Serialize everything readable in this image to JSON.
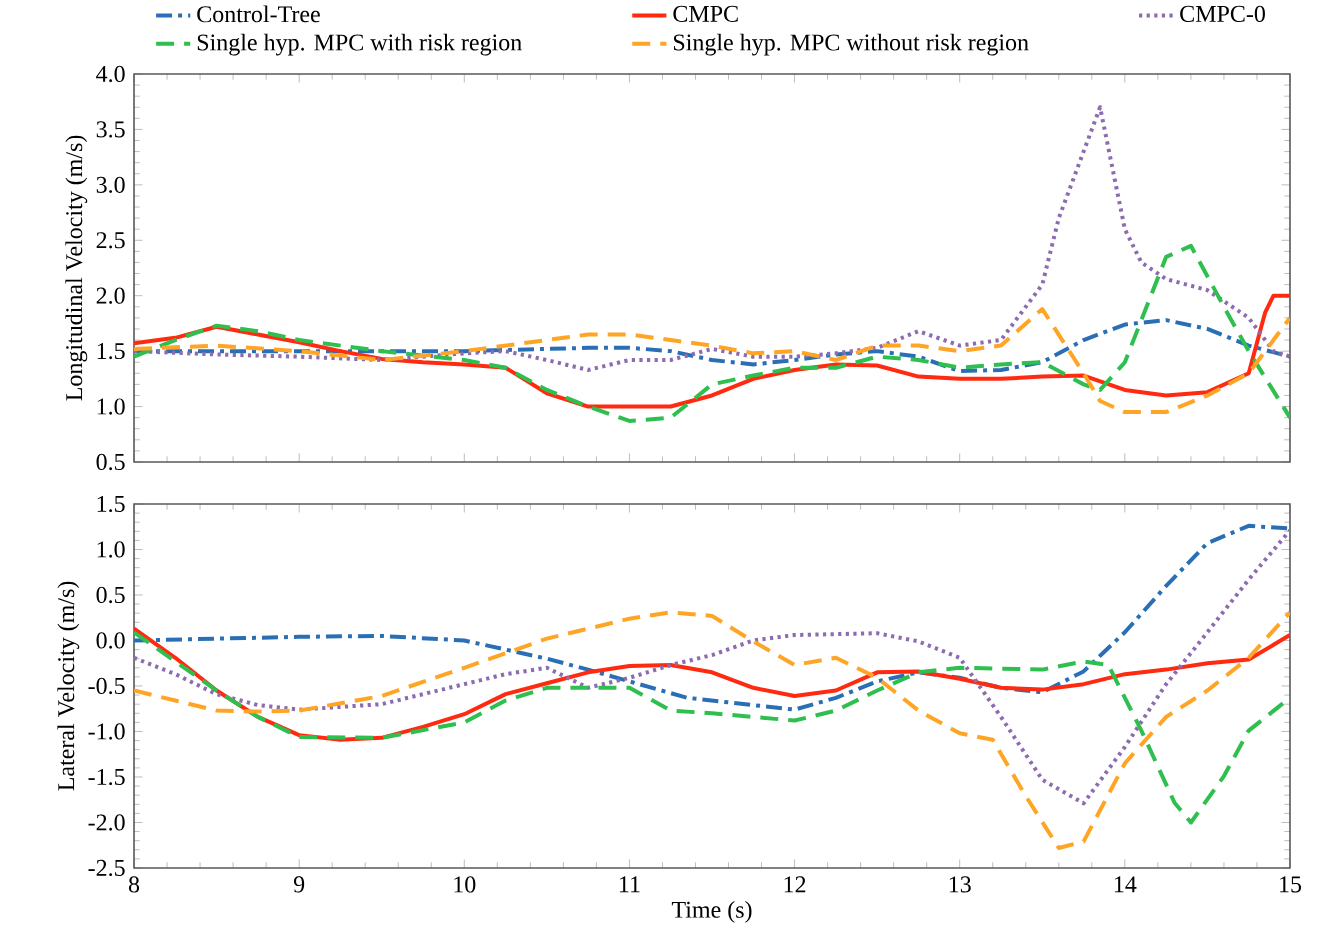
{
  "chart_data": [
    {
      "type": "line",
      "ylabel": "Longitudinal Velocity (m/s)",
      "xlim": [
        8,
        15
      ],
      "xticks": [
        8,
        9,
        10,
        11,
        12,
        13,
        14,
        15
      ],
      "ylim": [
        0.5,
        4.0
      ],
      "yticks": [
        0.5,
        {
          "value": 1,
          "label": "1.0"
        },
        1.5,
        {
          "value": 2,
          "label": "2.0"
        },
        2.5,
        {
          "value": 3,
          "label": "3.0"
        },
        3.5,
        {
          "value": 4,
          "label": "4.0"
        }
      ],
      "tick_labels": "y",
      "legend": "top",
      "marker": "none",
      "series": [
        {
          "name": "Control-Tree",
          "color": "#2a6fb5",
          "line_style": "dashdot",
          "x": [
            8,
            8.5,
            9,
            9.5,
            10,
            10.25,
            10.5,
            10.75,
            11,
            11.25,
            11.5,
            11.75,
            12,
            12.25,
            12.5,
            12.75,
            13,
            13.25,
            13.5,
            13.75,
            14,
            14.25,
            14.5,
            14.75,
            15
          ],
          "values": [
            1.5,
            1.5,
            1.5,
            1.5,
            1.5,
            1.51,
            1.52,
            1.53,
            1.53,
            1.5,
            1.42,
            1.38,
            1.42,
            1.47,
            1.5,
            1.45,
            1.32,
            1.33,
            1.4,
            1.6,
            1.74,
            1.78,
            1.7,
            1.55,
            1.45
          ]
        },
        {
          "name": "CMPC",
          "color": "#ff2a0f",
          "line_style": "solid",
          "x": [
            8,
            8.25,
            8.5,
            8.75,
            9,
            9.25,
            9.5,
            9.75,
            10,
            10.25,
            10.5,
            10.75,
            11,
            11.25,
            11.5,
            11.75,
            12,
            12.25,
            12.5,
            12.75,
            13,
            13.25,
            13.5,
            13.75,
            14,
            14.25,
            14.5,
            14.75,
            14.85,
            14.9,
            15
          ],
          "values": [
            1.57,
            1.62,
            1.72,
            1.65,
            1.58,
            1.5,
            1.43,
            1.4,
            1.38,
            1.35,
            1.12,
            1.0,
            1.0,
            1.0,
            1.1,
            1.25,
            1.33,
            1.38,
            1.37,
            1.27,
            1.25,
            1.25,
            1.27,
            1.28,
            1.15,
            1.1,
            1.13,
            1.3,
            1.85,
            2.0,
            2.0
          ]
        },
        {
          "name": "CMPC-0",
          "color": "#8c6bb1",
          "line_style": "dotted",
          "x": [
            8,
            8.5,
            9,
            9.5,
            10,
            10.25,
            10.5,
            10.75,
            11,
            11.25,
            11.5,
            11.75,
            12,
            12.25,
            12.5,
            12.75,
            13,
            13.25,
            13.5,
            13.6,
            13.75,
            13.85,
            14,
            14.1,
            14.25,
            14.5,
            14.75,
            14.9,
            15
          ],
          "values": [
            1.5,
            1.47,
            1.45,
            1.42,
            1.48,
            1.5,
            1.42,
            1.33,
            1.42,
            1.42,
            1.52,
            1.45,
            1.45,
            1.48,
            1.53,
            1.68,
            1.55,
            1.6,
            2.1,
            2.7,
            3.3,
            3.7,
            2.6,
            2.3,
            2.15,
            2.05,
            1.8,
            1.5,
            1.45
          ]
        },
        {
          "name": "Single hyp. MPC with risk region",
          "color": "#2ebf4f",
          "line_style": "dashed",
          "x": [
            8,
            8.25,
            8.5,
            8.75,
            9,
            9.5,
            10,
            10.25,
            10.5,
            10.75,
            11,
            11.25,
            11.5,
            11.75,
            12,
            12.25,
            12.5,
            12.75,
            13,
            13.25,
            13.5,
            13.75,
            13.85,
            14,
            14.25,
            14.4,
            14.6,
            14.75,
            15
          ],
          "values": [
            1.45,
            1.6,
            1.73,
            1.68,
            1.6,
            1.5,
            1.42,
            1.35,
            1.15,
            1.0,
            0.87,
            0.9,
            1.2,
            1.28,
            1.35,
            1.35,
            1.45,
            1.42,
            1.35,
            1.38,
            1.4,
            1.2,
            1.15,
            1.4,
            2.35,
            2.45,
            1.9,
            1.5,
            0.9
          ]
        },
        {
          "name": "Single hyp. MPC without risk region",
          "color": "#ffa526",
          "line_style": "dashed",
          "x": [
            8,
            8.5,
            9,
            9.5,
            10,
            10.5,
            10.75,
            11,
            11.25,
            11.5,
            11.75,
            12,
            12.25,
            12.5,
            12.75,
            13,
            13.25,
            13.5,
            13.75,
            13.85,
            14,
            14.25,
            14.5,
            14.75,
            15
          ],
          "values": [
            1.52,
            1.55,
            1.5,
            1.42,
            1.5,
            1.6,
            1.65,
            1.65,
            1.6,
            1.55,
            1.48,
            1.5,
            1.42,
            1.55,
            1.55,
            1.5,
            1.55,
            1.88,
            1.3,
            1.05,
            0.95,
            0.95,
            1.1,
            1.3,
            1.8
          ]
        }
      ]
    },
    {
      "type": "line",
      "xlabel": "Time (s)",
      "ylabel": "Lateral Velocity (m/s)",
      "xlim": [
        8,
        15
      ],
      "xticks": [
        8,
        9,
        10,
        11,
        12,
        13,
        14,
        15
      ],
      "ylim": [
        -2.5,
        1.5
      ],
      "yticks": [
        -2.5,
        {
          "value": -2,
          "label": "-2.0"
        },
        -1.5,
        {
          "value": -1,
          "label": "-1.0"
        },
        -0.5,
        {
          "value": 0,
          "label": "0.0"
        },
        0.5,
        {
          "value": 1,
          "label": "1.0"
        },
        1.5
      ],
      "marker": "none",
      "series": [
        {
          "color": "#2a6fb5",
          "line_style": "dashdot",
          "x": [
            8,
            8.5,
            9,
            9.5,
            10,
            10.25,
            10.5,
            10.75,
            11,
            11.35,
            12,
            12.25,
            12.5,
            12.75,
            13,
            13.25,
            13.5,
            13.75,
            14,
            14.25,
            14.5,
            14.75,
            15
          ],
          "values": [
            0.0,
            0.02,
            0.04,
            0.05,
            0.0,
            -0.1,
            -0.2,
            -0.32,
            -0.45,
            -0.63,
            -0.76,
            -0.63,
            -0.45,
            -0.35,
            -0.41,
            -0.52,
            -0.57,
            -0.34,
            0.09,
            0.6,
            1.07,
            1.26,
            1.23
          ]
        },
        {
          "color": "#ff2a0f",
          "line_style": "solid",
          "x": [
            8,
            8.25,
            8.5,
            8.75,
            9,
            9.25,
            9.5,
            9.75,
            10,
            10.25,
            10.5,
            10.75,
            11,
            11.25,
            11.5,
            11.75,
            12,
            12.25,
            12.5,
            12.75,
            13,
            13.25,
            13.5,
            13.75,
            14,
            14.25,
            14.5,
            14.75,
            15
          ],
          "values": [
            0.13,
            -0.19,
            -0.55,
            -0.84,
            -1.04,
            -1.09,
            -1.07,
            -0.95,
            -0.81,
            -0.59,
            -0.47,
            -0.35,
            -0.28,
            -0.27,
            -0.35,
            -0.52,
            -0.61,
            -0.55,
            -0.35,
            -0.34,
            -0.42,
            -0.52,
            -0.54,
            -0.48,
            -0.37,
            -0.32,
            -0.25,
            -0.21,
            0.06
          ]
        },
        {
          "color": "#8c6bb1",
          "line_style": "dotted",
          "x": [
            8,
            8.25,
            8.5,
            8.75,
            9,
            9.5,
            10,
            10.25,
            10.5,
            10.75,
            11,
            11.25,
            11.5,
            11.75,
            12,
            12.5,
            12.75,
            13,
            13.25,
            13.5,
            13.75,
            14,
            14.25,
            14.5,
            14.75,
            15
          ],
          "values": [
            -0.19,
            -0.37,
            -0.59,
            -0.71,
            -0.76,
            -0.7,
            -0.48,
            -0.37,
            -0.3,
            -0.52,
            -0.41,
            -0.27,
            -0.16,
            0.0,
            0.06,
            0.08,
            -0.01,
            -0.19,
            -0.84,
            -1.53,
            -1.79,
            -1.17,
            -0.48,
            0.09,
            0.67,
            1.21
          ]
        },
        {
          "color": "#2ebf4f",
          "line_style": "dashed",
          "x": [
            8,
            8.25,
            8.5,
            8.75,
            9,
            9.5,
            10,
            10.25,
            10.5,
            11,
            11.25,
            11.5,
            12,
            12.25,
            12.5,
            12.75,
            13,
            13.5,
            13.75,
            13.9,
            14.1,
            14.3,
            14.4,
            14.6,
            14.75,
            15
          ],
          "values": [
            0.09,
            -0.23,
            -0.55,
            -0.84,
            -1.06,
            -1.07,
            -0.9,
            -0.66,
            -0.52,
            -0.52,
            -0.77,
            -0.8,
            -0.88,
            -0.77,
            -0.55,
            -0.35,
            -0.3,
            -0.32,
            -0.23,
            -0.27,
            -0.99,
            -1.78,
            -2.0,
            -1.49,
            -0.99,
            -0.63
          ]
        },
        {
          "color": "#ffa526",
          "line_style": "dashed",
          "x": [
            8,
            8.25,
            8.5,
            8.75,
            9,
            9.5,
            10,
            10.5,
            11,
            11.25,
            11.5,
            11.75,
            12,
            12.25,
            12.5,
            12.75,
            13,
            13.2,
            13.4,
            13.6,
            13.75,
            14,
            14.25,
            14.5,
            14.75,
            15
          ],
          "values": [
            -0.55,
            -0.66,
            -0.77,
            -0.78,
            -0.77,
            -0.61,
            -0.3,
            0.02,
            0.24,
            0.31,
            0.27,
            -0.01,
            -0.27,
            -0.19,
            -0.41,
            -0.77,
            -1.02,
            -1.09,
            -1.71,
            -2.28,
            -2.21,
            -1.35,
            -0.84,
            -0.55,
            -0.19,
            0.31
          ]
        }
      ]
    }
  ]
}
